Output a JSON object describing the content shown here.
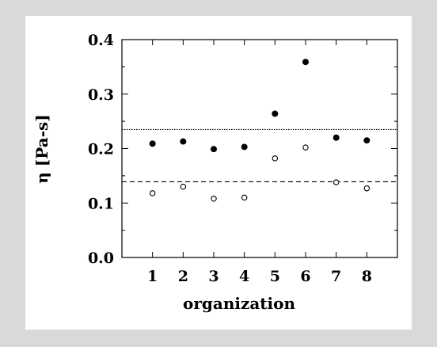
{
  "chart_data": {
    "type": "scatter",
    "xlabel": "organization",
    "ylabel": "η [Pa-s]",
    "categories": [
      "1",
      "2",
      "3",
      "4",
      "5",
      "6",
      "7",
      "8"
    ],
    "x": [
      1,
      2,
      3,
      4,
      5,
      6,
      7,
      8
    ],
    "ylim": [
      0.0,
      0.4
    ],
    "xlim": [
      0,
      9
    ],
    "yticks": [
      "0.0",
      "0.1",
      "0.2",
      "0.3",
      "0.4"
    ],
    "grid": false,
    "series": [
      {
        "marker": "filled-circle",
        "values": [
          0.209,
          0.213,
          0.199,
          0.203,
          0.264,
          0.359,
          0.22,
          0.215
        ]
      },
      {
        "marker": "open-circle",
        "values": [
          0.118,
          0.13,
          0.108,
          0.11,
          0.182,
          0.202,
          0.138,
          0.127
        ]
      }
    ],
    "reference_lines": [
      {
        "style": "dotted",
        "value": 0.235
      },
      {
        "style": "dashed",
        "value": 0.139
      }
    ]
  }
}
